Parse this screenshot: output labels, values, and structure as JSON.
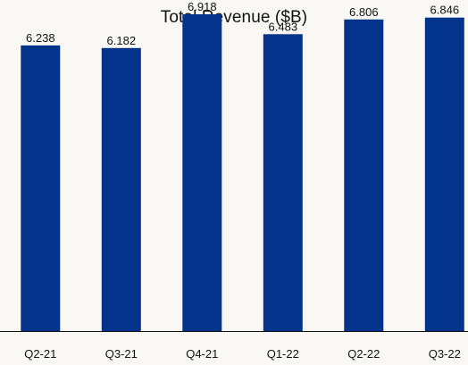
{
  "chart_data": {
    "type": "bar",
    "title": "Total Revenue ($B)",
    "categories": [
      "Q2-21",
      "Q3-21",
      "Q4-21",
      "Q1-22",
      "Q2-22",
      "Q3-22"
    ],
    "values": [
      6.238,
      6.182,
      6.918,
      6.483,
      6.806,
      6.846
    ],
    "value_labels": [
      "6.238",
      "6.182",
      "6.918",
      "6.483",
      "6.806",
      "6.846"
    ],
    "xlabel": "",
    "ylabel": "",
    "ylim": [
      0,
      7.23
    ],
    "grid": false,
    "legend": "none",
    "bar_color": "#03338a",
    "baseline_color": "#111111"
  }
}
